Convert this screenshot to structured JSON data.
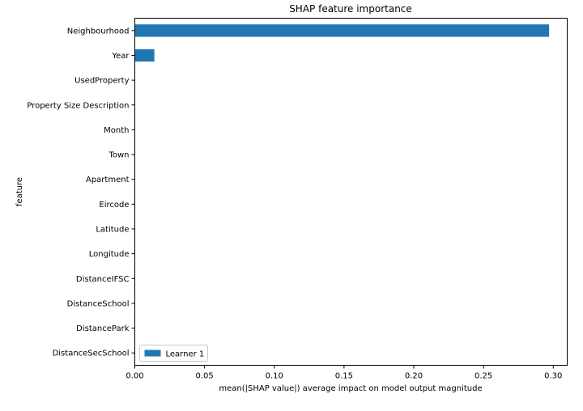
{
  "chart_data": {
    "type": "bar",
    "orientation": "horizontal",
    "title": "SHAP feature importance",
    "xlabel": "mean(|SHAP value|) average impact on model output magnitude",
    "ylabel": "feature",
    "xlim": [
      0,
      0.31
    ],
    "xticks": [
      0.0,
      0.05,
      0.1,
      0.15,
      0.2,
      0.25,
      0.3
    ],
    "xtick_labels": [
      "0.00",
      "0.05",
      "0.10",
      "0.15",
      "0.20",
      "0.25",
      "0.30"
    ],
    "categories": [
      "Neighbourhood",
      "Year",
      "UsedProperty",
      "Property Size Description",
      "Month",
      "Town",
      "Apartment",
      "Eircode",
      "Latitude",
      "Longitude",
      "DistanceIFSC",
      "DistanceSchool",
      "DistancePark",
      "DistanceSecSchool"
    ],
    "series": [
      {
        "name": "Learner 1",
        "color": "#1f77b4",
        "values": [
          0.297,
          0.014,
          0,
          0,
          0,
          0,
          0,
          0,
          0,
          0,
          0,
          0,
          0,
          0
        ]
      }
    ],
    "grid": false,
    "legend_position": "lower-left"
  }
}
